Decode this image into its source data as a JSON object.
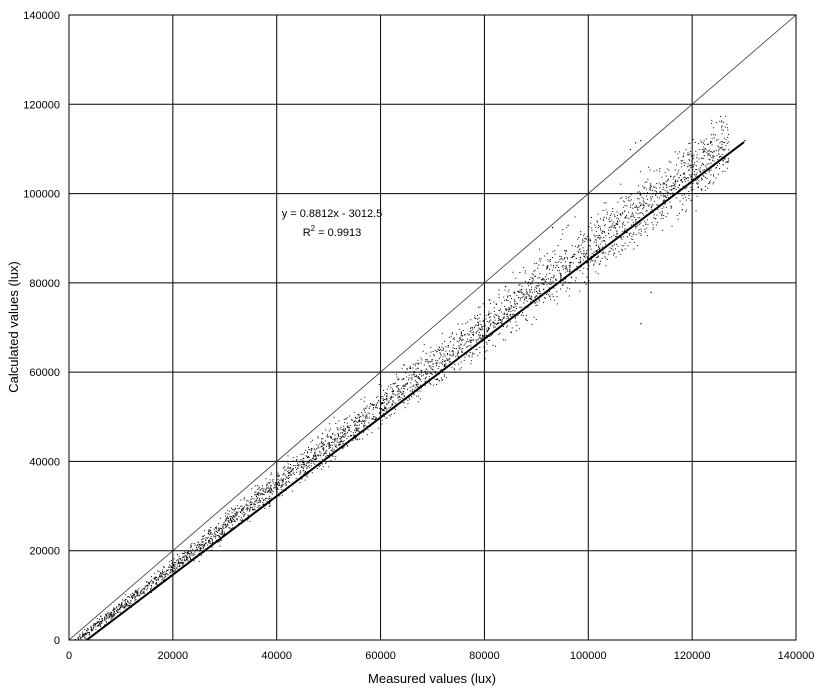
{
  "chart_data": {
    "type": "scatter",
    "xlabel": "Measured values (lux)",
    "ylabel": "Calculated values (lux)",
    "xlim": [
      0,
      140000
    ],
    "ylim": [
      0,
      140000
    ],
    "x_ticks": [
      "0",
      "20000",
      "40000",
      "60000",
      "80000",
      "100000",
      "120000",
      "140000"
    ],
    "y_ticks": [
      "0",
      "20000",
      "40000",
      "60000",
      "80000",
      "100000",
      "120000",
      "140000"
    ],
    "grid": true,
    "point_color": "#000000",
    "trendline": {
      "slope": 0.8812,
      "intercept": -3012.5,
      "x_range": [
        3420,
        130000
      ],
      "equation_text": "y = 0.8812x - 3012.5",
      "r2_label": "R",
      "r2_sup": "2",
      "r2_value": " = 0.9913"
    },
    "reference_line": {
      "x": [
        0,
        140000
      ],
      "y": [
        0,
        140000
      ]
    },
    "points_sample": [
      [
        2000,
        1300
      ],
      [
        5000,
        3600
      ],
      [
        8000,
        6200
      ],
      [
        10000,
        8100
      ],
      [
        12000,
        9800
      ],
      [
        15000,
        12300
      ],
      [
        18000,
        15200
      ],
      [
        20000,
        17000
      ],
      [
        25000,
        21500
      ],
      [
        30000,
        26000
      ],
      [
        35000,
        30500
      ],
      [
        40000,
        35000
      ],
      [
        45000,
        39500
      ],
      [
        50000,
        44000
      ],
      [
        55000,
        48500
      ],
      [
        60000,
        53000
      ],
      [
        65000,
        57500
      ],
      [
        70000,
        62000
      ],
      [
        75000,
        66000
      ],
      [
        80000,
        70500
      ],
      [
        85000,
        75000
      ],
      [
        90000,
        79500
      ],
      [
        95000,
        84000
      ],
      [
        100000,
        88500
      ],
      [
        105000,
        93000
      ],
      [
        110000,
        97500
      ],
      [
        115000,
        101500
      ],
      [
        120000,
        105500
      ],
      [
        125000,
        109000
      ],
      [
        130000,
        112000
      ],
      [
        108000,
        110000
      ],
      [
        109000,
        111500
      ],
      [
        110000,
        112000
      ],
      [
        117000,
        104500
      ],
      [
        122000,
        108000
      ],
      [
        110000,
        71000
      ],
      [
        112000,
        78000
      ],
      [
        96000,
        93000
      ],
      [
        93000,
        92500
      ],
      [
        118000,
        96500
      ]
    ]
  }
}
